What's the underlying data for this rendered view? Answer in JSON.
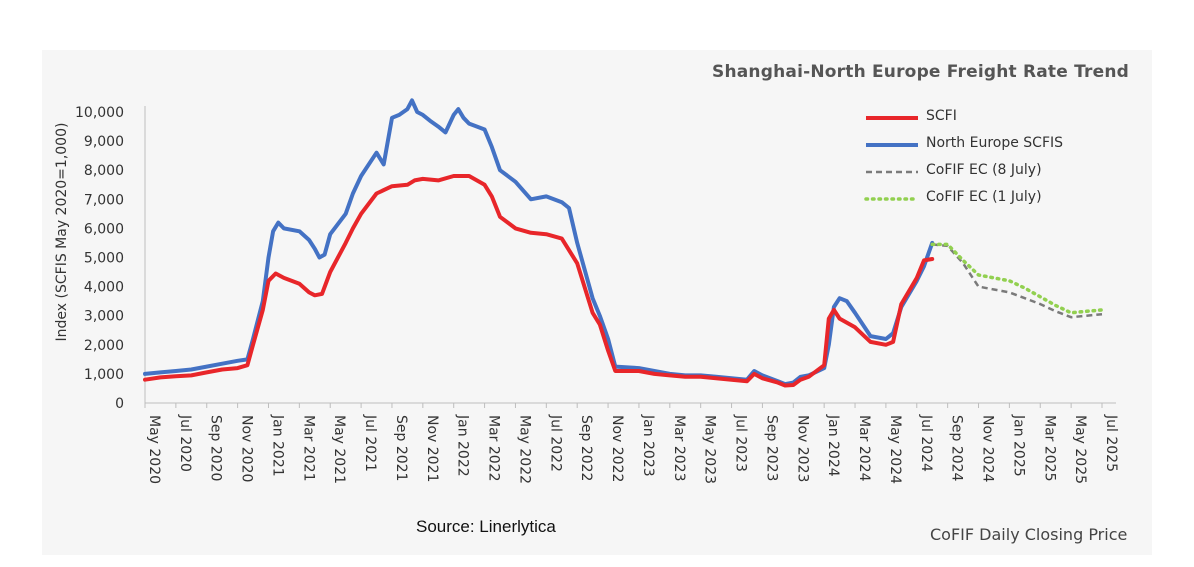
{
  "chart_data": {
    "type": "line",
    "title": "Shanghai-North Europe Freight Rate Trend",
    "ylabel": "Index (SCFIS May 2020=1,000)",
    "xlabel": "",
    "ylim": [
      0,
      10000
    ],
    "yticks": [
      0,
      1000,
      2000,
      3000,
      4000,
      5000,
      6000,
      7000,
      8000,
      9000,
      10000
    ],
    "ytick_labels": [
      "0",
      "1,000",
      "2,000",
      "3,000",
      "4,000",
      "5,000",
      "6,000",
      "7,000",
      "8,000",
      "9,000",
      "10,000"
    ],
    "xlim": [
      "2020-05",
      "2025-07"
    ],
    "xtick_labels": [
      "May 2020",
      "Jul 2020",
      "Sep 2020",
      "Nov 2020",
      "Jan 2021",
      "Mar 2021",
      "May 2021",
      "Jul 2021",
      "Sep 2021",
      "Nov 2021",
      "Jan 2022",
      "Mar 2022",
      "May 2022",
      "Jul 2022",
      "Sep 2022",
      "Nov 2022",
      "Jan 2023",
      "Mar 2023",
      "May 2023",
      "Jul 2023",
      "Sep 2023",
      "Nov 2023",
      "Jan 2024",
      "Mar 2024",
      "May 2024",
      "Jul 2024",
      "Sep 2024",
      "Nov 2024",
      "Jan 2025",
      "Mar 2025",
      "May 2025",
      "Jul 2025"
    ],
    "grid": false,
    "legend_position": "top-right",
    "series": [
      {
        "name": "SCFI",
        "color": "#e8262a",
        "style": "solid",
        "points": [
          [
            "2020-05",
            800
          ],
          [
            "2020-06",
            880
          ],
          [
            "2020-07",
            920
          ],
          [
            "2020-08",
            950
          ],
          [
            "2020-09",
            1050
          ],
          [
            "2020-10",
            1150
          ],
          [
            "2020-11",
            1200
          ],
          [
            "2020-11-20",
            1300
          ],
          [
            "2020-12",
            2000
          ],
          [
            "2020-12-20",
            3200
          ],
          [
            "2021-01",
            4200
          ],
          [
            "2021-01-15",
            4450
          ],
          [
            "2021-02",
            4300
          ],
          [
            "2021-03",
            4100
          ],
          [
            "2021-03-20",
            3800
          ],
          [
            "2021-04",
            3700
          ],
          [
            "2021-04-15",
            3750
          ],
          [
            "2021-05",
            4500
          ],
          [
            "2021-06",
            5500
          ],
          [
            "2021-06-15",
            6000
          ],
          [
            "2021-07",
            6500
          ],
          [
            "2021-08",
            7200
          ],
          [
            "2021-09",
            7450
          ],
          [
            "2021-10",
            7500
          ],
          [
            "2021-10-15",
            7650
          ],
          [
            "2021-11",
            7700
          ],
          [
            "2021-12",
            7650
          ],
          [
            "2022-01",
            7800
          ],
          [
            "2022-02",
            7800
          ],
          [
            "2022-03",
            7500
          ],
          [
            "2022-03-15",
            7100
          ],
          [
            "2022-04",
            6400
          ],
          [
            "2022-05",
            6000
          ],
          [
            "2022-06",
            5850
          ],
          [
            "2022-07",
            5800
          ],
          [
            "2022-08",
            5650
          ],
          [
            "2022-09",
            4800
          ],
          [
            "2022-10",
            3100
          ],
          [
            "2022-10-15",
            2700
          ],
          [
            "2022-11",
            1800
          ],
          [
            "2022-11-15",
            1100
          ],
          [
            "2023-01",
            1100
          ],
          [
            "2023-02",
            1000
          ],
          [
            "2023-03",
            950
          ],
          [
            "2023-04",
            900
          ],
          [
            "2023-05",
            900
          ],
          [
            "2023-06",
            850
          ],
          [
            "2023-07",
            800
          ],
          [
            "2023-08",
            750
          ],
          [
            "2023-08-15",
            1000
          ],
          [
            "2023-09",
            850
          ],
          [
            "2023-10",
            700
          ],
          [
            "2023-10-15",
            600
          ],
          [
            "2023-11",
            620
          ],
          [
            "2023-11-15",
            800
          ],
          [
            "2023-12",
            900
          ],
          [
            "2024-01",
            1300
          ],
          [
            "2024-01-10",
            2900
          ],
          [
            "2024-01-20",
            3200
          ],
          [
            "2024-02",
            2900
          ],
          [
            "2024-03",
            2600
          ],
          [
            "2024-04",
            2100
          ],
          [
            "2024-05",
            2000
          ],
          [
            "2024-05-15",
            2100
          ],
          [
            "2024-06",
            3400
          ],
          [
            "2024-07",
            4300
          ],
          [
            "2024-07-15",
            4900
          ],
          [
            "2024-08",
            4950
          ]
        ]
      },
      {
        "name": "North Europe SCFIS",
        "color": "#4472c4",
        "style": "solid",
        "points": [
          [
            "2020-05",
            1000
          ],
          [
            "2020-06",
            1050
          ],
          [
            "2020-07",
            1100
          ],
          [
            "2020-08",
            1150
          ],
          [
            "2020-09",
            1250
          ],
          [
            "2020-10",
            1350
          ],
          [
            "2020-11",
            1450
          ],
          [
            "2020-11-20",
            1500
          ],
          [
            "2020-12",
            2200
          ],
          [
            "2020-12-20",
            3500
          ],
          [
            "2021-01",
            5000
          ],
          [
            "2021-01-10",
            5900
          ],
          [
            "2021-01-20",
            6200
          ],
          [
            "2021-02",
            6000
          ],
          [
            "2021-03",
            5900
          ],
          [
            "2021-03-20",
            5600
          ],
          [
            "2021-04",
            5300
          ],
          [
            "2021-04-10",
            5000
          ],
          [
            "2021-04-20",
            5100
          ],
          [
            "2021-05",
            5800
          ],
          [
            "2021-06",
            6500
          ],
          [
            "2021-06-15",
            7200
          ],
          [
            "2021-07",
            7800
          ],
          [
            "2021-08",
            8600
          ],
          [
            "2021-08-15",
            8200
          ],
          [
            "2021-09",
            9800
          ],
          [
            "2021-09-15",
            9900
          ],
          [
            "2021-10",
            10100
          ],
          [
            "2021-10-10",
            10400
          ],
          [
            "2021-10-20",
            10000
          ],
          [
            "2021-11",
            9900
          ],
          [
            "2021-11-15",
            9700
          ],
          [
            "2021-12",
            9500
          ],
          [
            "2021-12-15",
            9300
          ],
          [
            "2022-01",
            9900
          ],
          [
            "2022-01-10",
            10100
          ],
          [
            "2022-01-20",
            9800
          ],
          [
            "2022-02",
            9600
          ],
          [
            "2022-03",
            9400
          ],
          [
            "2022-03-15",
            8800
          ],
          [
            "2022-04",
            8000
          ],
          [
            "2022-05",
            7600
          ],
          [
            "2022-06",
            7000
          ],
          [
            "2022-07",
            7100
          ],
          [
            "2022-08",
            6900
          ],
          [
            "2022-08-15",
            6700
          ],
          [
            "2022-09",
            5500
          ],
          [
            "2022-10",
            3600
          ],
          [
            "2022-10-15",
            3000
          ],
          [
            "2022-11",
            2200
          ],
          [
            "2022-11-15",
            1250
          ],
          [
            "2023-01",
            1200
          ],
          [
            "2023-02",
            1100
          ],
          [
            "2023-03",
            1000
          ],
          [
            "2023-04",
            950
          ],
          [
            "2023-05",
            950
          ],
          [
            "2023-06",
            900
          ],
          [
            "2023-07",
            850
          ],
          [
            "2023-08",
            800
          ],
          [
            "2023-08-15",
            1100
          ],
          [
            "2023-09",
            950
          ],
          [
            "2023-10",
            750
          ],
          [
            "2023-10-15",
            650
          ],
          [
            "2023-11",
            700
          ],
          [
            "2023-11-15",
            900
          ],
          [
            "2023-12",
            950
          ],
          [
            "2024-01",
            1200
          ],
          [
            "2024-01-10",
            2000
          ],
          [
            "2024-01-20",
            3300
          ],
          [
            "2024-02",
            3600
          ],
          [
            "2024-02-15",
            3500
          ],
          [
            "2024-03",
            3100
          ],
          [
            "2024-04",
            2300
          ],
          [
            "2024-05",
            2200
          ],
          [
            "2024-05-15",
            2400
          ],
          [
            "2024-06",
            3300
          ],
          [
            "2024-07",
            4200
          ],
          [
            "2024-07-15",
            4700
          ],
          [
            "2024-08",
            5500
          ]
        ]
      },
      {
        "name": "CoFIF EC (8 July)",
        "color": "#7a7a7a",
        "style": "dashed",
        "points": [
          [
            "2024-08",
            5450
          ],
          [
            "2024-09",
            5400
          ],
          [
            "2024-10",
            4800
          ],
          [
            "2024-11",
            4000
          ],
          [
            "2024-12",
            3900
          ],
          [
            "2025-01",
            3800
          ],
          [
            "2025-02",
            3600
          ],
          [
            "2025-03",
            3400
          ],
          [
            "2025-04",
            3150
          ],
          [
            "2025-05",
            2950
          ],
          [
            "2025-06",
            3000
          ],
          [
            "2025-07",
            3050
          ]
        ]
      },
      {
        "name": "CoFIF EC (1 July)",
        "color": "#92d050",
        "style": "dotted",
        "points": [
          [
            "2024-08",
            5450
          ],
          [
            "2024-09",
            5450
          ],
          [
            "2024-10",
            4900
          ],
          [
            "2024-11",
            4400
          ],
          [
            "2024-12",
            4300
          ],
          [
            "2025-01",
            4200
          ],
          [
            "2025-02",
            3950
          ],
          [
            "2025-03",
            3650
          ],
          [
            "2025-04",
            3350
          ],
          [
            "2025-05",
            3100
          ],
          [
            "2025-06",
            3150
          ],
          [
            "2025-07",
            3200
          ]
        ]
      }
    ]
  },
  "footer": {
    "source": "Source: Linerlytica",
    "cofif_note": "CoFIF Daily Closing Price"
  }
}
